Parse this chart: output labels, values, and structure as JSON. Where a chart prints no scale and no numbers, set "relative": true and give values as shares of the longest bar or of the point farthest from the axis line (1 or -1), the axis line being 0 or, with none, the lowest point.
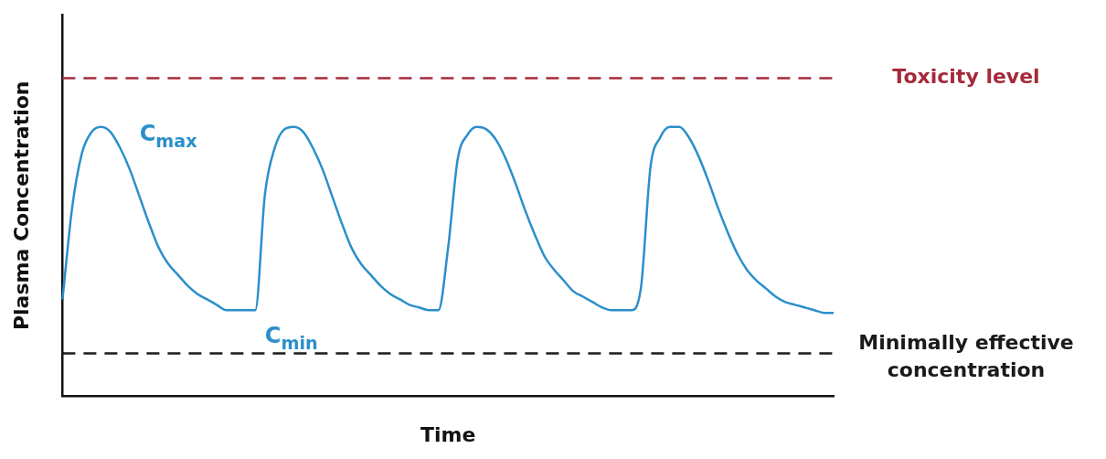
{
  "chart_data": {
    "type": "line",
    "relative": true,
    "xlabel": "Time",
    "ylabel": "Plasma Concentration",
    "categories": [
      null,
      null,
      null,
      null,
      null,
      null,
      null,
      null,
      null,
      null,
      null,
      null,
      null,
      null,
      null,
      null,
      null,
      null,
      null,
      null,
      null,
      null,
      null,
      null,
      null,
      null,
      null,
      null,
      null,
      null,
      null,
      null,
      null,
      null,
      null,
      null,
      null,
      null,
      null,
      null,
      null,
      null,
      null,
      null,
      null,
      null,
      null,
      null,
      null,
      null,
      null,
      null,
      null,
      null,
      null,
      null,
      null,
      null,
      null,
      null,
      null,
      null,
      null,
      null,
      null,
      null,
      null,
      null,
      null,
      null,
      null,
      null,
      null,
      null,
      null,
      null,
      null,
      null,
      null,
      null,
      null
    ],
    "series": [
      {
        "color": "#2b8fcb",
        "values": [
          0.36,
          0.7,
          0.9,
          0.98,
          1.0,
          0.98,
          0.92,
          0.84,
          0.74,
          0.64,
          0.55,
          0.49,
          0.45,
          0.41,
          0.38,
          0.36,
          0.34,
          0.32,
          0.32,
          0.32,
          0.32,
          0.75,
          0.92,
          0.99,
          1.0,
          0.98,
          0.92,
          0.84,
          0.74,
          0.64,
          0.55,
          0.49,
          0.45,
          0.41,
          0.38,
          0.36,
          0.34,
          0.33,
          0.32,
          0.32,
          0.55,
          0.88,
          0.97,
          1.0,
          0.99,
          0.95,
          0.88,
          0.79,
          0.69,
          0.6,
          0.52,
          0.47,
          0.43,
          0.39,
          0.37,
          0.35,
          0.33,
          0.32,
          0.32,
          0.32,
          0.4,
          0.85,
          0.96,
          1.0,
          1.0,
          0.96,
          0.89,
          0.8,
          0.7,
          0.61,
          0.53,
          0.47,
          0.43,
          0.4,
          0.37,
          0.35,
          0.34,
          0.33,
          0.32,
          0.31,
          0.31
        ]
      }
    ],
    "ref_lines": [
      {
        "axis": "y",
        "value": 1.18,
        "label": "Toxicity level",
        "color": "#a52a3a",
        "line_style": "dashed"
      },
      {
        "axis": "y",
        "value": 0.16,
        "label": "Minimally effective concentration",
        "color": "#1a1a1a",
        "line_style": "dashed"
      }
    ],
    "annotations": [
      "C$_{max}$",
      "C$_{min}$"
    ],
    "grid": false,
    "legend": false,
    "marker": "none",
    "line_style": "solid"
  }
}
